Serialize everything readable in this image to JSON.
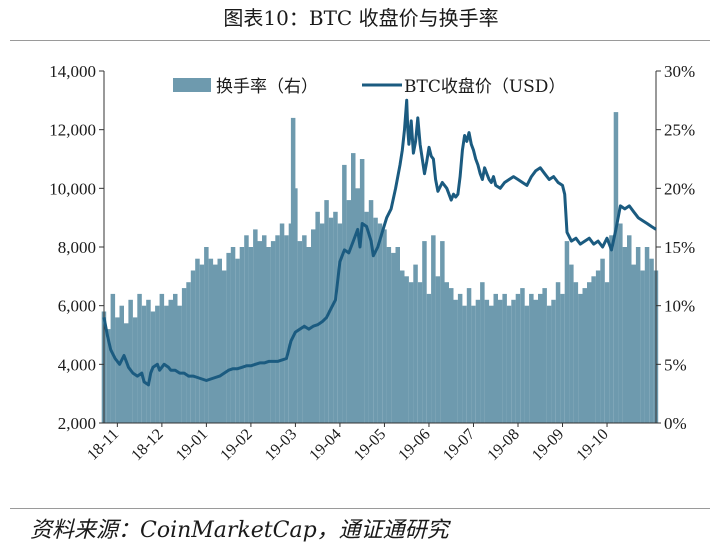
{
  "title": "图表10：BTC 收盘价与换手率",
  "source": "资料来源：CoinMarketCap，通证通研究",
  "chart_data": {
    "type": "bar+line",
    "title": "图表10：BTC 收盘价与换手率",
    "categories": [
      "18-11",
      "18-12",
      "19-01",
      "19-02",
      "19-03",
      "19-04",
      "19-05",
      "19-06",
      "19-07",
      "19-08",
      "19-09",
      "19-10"
    ],
    "y_left": {
      "min": 2000,
      "max": 14000,
      "ticks": [
        "2,000",
        "4,000",
        "6,000",
        "8,000",
        "10,000",
        "12,000",
        "14,000"
      ]
    },
    "y_right": {
      "min": 0,
      "max": 30,
      "ticks": [
        "0%",
        "5%",
        "10%",
        "15%",
        "20%",
        "25%",
        "30%"
      ]
    },
    "legend_placement": "top-center",
    "colors": {
      "bar": "#6e9aae",
      "line": "#1b5b80"
    },
    "series": [
      {
        "name": "换手率（右）",
        "type": "bar",
        "axis": "right",
        "unit": "%",
        "points": [
          [
            0.0,
            9.5
          ],
          [
            0.2,
            8.0
          ],
          [
            0.4,
            11.0
          ],
          [
            0.6,
            9.0
          ],
          [
            0.8,
            10.0
          ],
          [
            1.0,
            8.5
          ],
          [
            1.2,
            10.5
          ],
          [
            1.4,
            9.0
          ],
          [
            1.6,
            11.0
          ],
          [
            1.8,
            10.0
          ],
          [
            2.0,
            10.5
          ],
          [
            2.2,
            9.5
          ],
          [
            2.4,
            10.0
          ],
          [
            2.6,
            11.0
          ],
          [
            2.8,
            10.0
          ],
          [
            3.0,
            10.5
          ],
          [
            3.2,
            11.0
          ],
          [
            3.4,
            10.0
          ],
          [
            3.6,
            11.5
          ],
          [
            3.8,
            12.0
          ],
          [
            4.0,
            13.0
          ],
          [
            4.2,
            14.0
          ],
          [
            4.4,
            13.5
          ],
          [
            4.6,
            15.0
          ],
          [
            4.8,
            14.0
          ],
          [
            5.0,
            13.5
          ],
          [
            5.2,
            14.0
          ],
          [
            5.4,
            13.0
          ],
          [
            5.6,
            14.5
          ],
          [
            5.8,
            15.0
          ],
          [
            6.0,
            14.0
          ],
          [
            6.2,
            15.0
          ],
          [
            6.4,
            16.0
          ],
          [
            6.6,
            15.0
          ],
          [
            6.8,
            16.5
          ],
          [
            7.0,
            15.5
          ],
          [
            7.2,
            16.0
          ],
          [
            7.4,
            15.0
          ],
          [
            7.6,
            15.5
          ],
          [
            7.8,
            16.0
          ],
          [
            8.0,
            17.0
          ],
          [
            8.2,
            16.0
          ],
          [
            8.4,
            17.0
          ],
          [
            8.5,
            26.0
          ],
          [
            8.6,
            20.0
          ],
          [
            8.8,
            15.5
          ],
          [
            9.0,
            16.0
          ],
          [
            9.2,
            15.0
          ],
          [
            9.4,
            16.5
          ],
          [
            9.6,
            18.0
          ],
          [
            9.8,
            17.0
          ],
          [
            10.0,
            19.0
          ],
          [
            10.2,
            17.5
          ],
          [
            10.4,
            18.0
          ],
          [
            10.6,
            17.0
          ],
          [
            10.8,
            22.0
          ],
          [
            11.0,
            19.0
          ],
          [
            11.2,
            23.0
          ],
          [
            11.4,
            20.0
          ],
          [
            11.6,
            22.5
          ],
          [
            11.8,
            18.0
          ],
          [
            12.0,
            19.0
          ],
          [
            12.2,
            17.5
          ],
          [
            12.4,
            17.0
          ],
          [
            12.6,
            16.5
          ],
          [
            12.8,
            15.0
          ],
          [
            13.0,
            14.5
          ],
          [
            13.2,
            15.0
          ],
          [
            13.4,
            13.0
          ],
          [
            13.6,
            12.5
          ],
          [
            13.8,
            12.0
          ],
          [
            14.0,
            13.5
          ],
          [
            14.2,
            12.0
          ],
          [
            14.4,
            15.5
          ],
          [
            14.6,
            11.0
          ],
          [
            14.8,
            16.0
          ],
          [
            15.0,
            12.5
          ],
          [
            15.2,
            15.5
          ],
          [
            15.4,
            12.0
          ],
          [
            15.6,
            11.5
          ],
          [
            15.8,
            10.5
          ],
          [
            16.0,
            11.0
          ],
          [
            16.2,
            10.0
          ],
          [
            16.4,
            11.5
          ],
          [
            16.6,
            10.0
          ],
          [
            16.8,
            10.5
          ],
          [
            17.0,
            12.0
          ],
          [
            17.2,
            10.5
          ],
          [
            17.4,
            10.0
          ],
          [
            17.6,
            11.0
          ],
          [
            17.8,
            10.5
          ],
          [
            18.0,
            11.0
          ],
          [
            18.2,
            10.0
          ],
          [
            18.4,
            10.5
          ],
          [
            18.6,
            11.0
          ],
          [
            18.8,
            11.5
          ],
          [
            19.0,
            10.0
          ],
          [
            19.2,
            11.0
          ],
          [
            19.4,
            10.5
          ],
          [
            19.6,
            11.0
          ],
          [
            19.8,
            11.5
          ],
          [
            20.0,
            10.0
          ],
          [
            20.2,
            10.5
          ],
          [
            20.4,
            12.0
          ],
          [
            20.6,
            11.0
          ],
          [
            20.8,
            15.5
          ],
          [
            21.0,
            13.5
          ],
          [
            21.2,
            12.0
          ],
          [
            21.4,
            11.0
          ],
          [
            21.6,
            11.5
          ],
          [
            21.8,
            12.0
          ],
          [
            22.0,
            12.5
          ],
          [
            22.2,
            13.0
          ],
          [
            22.4,
            14.0
          ],
          [
            22.6,
            12.0
          ],
          [
            22.8,
            16.0
          ],
          [
            23.0,
            26.5
          ],
          [
            23.2,
            17.0
          ],
          [
            23.4,
            15.0
          ],
          [
            23.6,
            16.0
          ],
          [
            23.8,
            13.5
          ],
          [
            24.0,
            15.0
          ],
          [
            24.2,
            13.0
          ],
          [
            24.4,
            15.0
          ],
          [
            24.6,
            14.0
          ],
          [
            24.8,
            13.0
          ]
        ]
      },
      {
        "name": "BTC收盘价（USD）",
        "type": "line",
        "axis": "left",
        "unit": "USD",
        "points": [
          [
            0.0,
            5600
          ],
          [
            0.15,
            5000
          ],
          [
            0.3,
            4500
          ],
          [
            0.5,
            4200
          ],
          [
            0.7,
            4000
          ],
          [
            0.9,
            4300
          ],
          [
            1.0,
            4100
          ],
          [
            1.1,
            3900
          ],
          [
            1.3,
            3700
          ],
          [
            1.5,
            3600
          ],
          [
            1.7,
            3700
          ],
          [
            1.8,
            3400
          ],
          [
            2.0,
            3300
          ],
          [
            2.1,
            3700
          ],
          [
            2.2,
            3900
          ],
          [
            2.4,
            4000
          ],
          [
            2.5,
            3800
          ],
          [
            2.7,
            4000
          ],
          [
            2.9,
            3900
          ],
          [
            3.0,
            3800
          ],
          [
            3.2,
            3800
          ],
          [
            3.4,
            3700
          ],
          [
            3.6,
            3700
          ],
          [
            3.8,
            3600
          ],
          [
            4.0,
            3600
          ],
          [
            4.2,
            3550
          ],
          [
            4.4,
            3500
          ],
          [
            4.6,
            3450
          ],
          [
            4.8,
            3500
          ],
          [
            5.0,
            3550
          ],
          [
            5.2,
            3600
          ],
          [
            5.4,
            3700
          ],
          [
            5.6,
            3800
          ],
          [
            5.8,
            3850
          ],
          [
            6.0,
            3850
          ],
          [
            6.2,
            3900
          ],
          [
            6.4,
            3950
          ],
          [
            6.6,
            3950
          ],
          [
            6.8,
            4000
          ],
          [
            7.0,
            4050
          ],
          [
            7.2,
            4050
          ],
          [
            7.4,
            4100
          ],
          [
            7.6,
            4100
          ],
          [
            7.8,
            4100
          ],
          [
            8.0,
            4150
          ],
          [
            8.2,
            4200
          ],
          [
            8.4,
            4800
          ],
          [
            8.6,
            5100
          ],
          [
            8.8,
            5200
          ],
          [
            9.0,
            5300
          ],
          [
            9.2,
            5200
          ],
          [
            9.4,
            5300
          ],
          [
            9.6,
            5350
          ],
          [
            9.8,
            5450
          ],
          [
            10.0,
            5600
          ],
          [
            10.2,
            5900
          ],
          [
            10.4,
            6200
          ],
          [
            10.6,
            7500
          ],
          [
            10.8,
            7900
          ],
          [
            11.0,
            7800
          ],
          [
            11.2,
            8200
          ],
          [
            11.4,
            8600
          ],
          [
            11.5,
            8000
          ],
          [
            11.6,
            8800
          ],
          [
            11.8,
            8700
          ],
          [
            12.0,
            8200
          ],
          [
            12.1,
            7700
          ],
          [
            12.3,
            8000
          ],
          [
            12.5,
            8500
          ],
          [
            12.7,
            9000
          ],
          [
            12.9,
            9300
          ],
          [
            13.1,
            10000
          ],
          [
            13.3,
            10800
          ],
          [
            13.4,
            11300
          ],
          [
            13.5,
            12000
          ],
          [
            13.6,
            13000
          ],
          [
            13.65,
            12000
          ],
          [
            13.7,
            11500
          ],
          [
            13.8,
            12300
          ],
          [
            13.9,
            11200
          ],
          [
            14.0,
            11600
          ],
          [
            14.1,
            12400
          ],
          [
            14.2,
            11500
          ],
          [
            14.3,
            11000
          ],
          [
            14.4,
            10500
          ],
          [
            14.5,
            10900
          ],
          [
            14.6,
            11400
          ],
          [
            14.7,
            11100
          ],
          [
            14.8,
            11000
          ],
          [
            14.9,
            10300
          ],
          [
            15.0,
            9900
          ],
          [
            15.2,
            10200
          ],
          [
            15.4,
            10000
          ],
          [
            15.6,
            9600
          ],
          [
            15.7,
            9800
          ],
          [
            15.8,
            9700
          ],
          [
            15.9,
            9800
          ],
          [
            16.0,
            10400
          ],
          [
            16.1,
            11300
          ],
          [
            16.2,
            11800
          ],
          [
            16.3,
            11600
          ],
          [
            16.4,
            11900
          ],
          [
            16.5,
            11500
          ],
          [
            16.6,
            11300
          ],
          [
            16.7,
            11000
          ],
          [
            16.8,
            10800
          ],
          [
            16.9,
            10500
          ],
          [
            17.0,
            10300
          ],
          [
            17.1,
            10700
          ],
          [
            17.2,
            10500
          ],
          [
            17.3,
            10300
          ],
          [
            17.4,
            10200
          ],
          [
            17.5,
            10400
          ],
          [
            17.6,
            10100
          ],
          [
            17.8,
            10000
          ],
          [
            18.0,
            10200
          ],
          [
            18.2,
            10300
          ],
          [
            18.4,
            10400
          ],
          [
            18.6,
            10300
          ],
          [
            18.8,
            10200
          ],
          [
            19.0,
            10100
          ],
          [
            19.2,
            10400
          ],
          [
            19.4,
            10600
          ],
          [
            19.6,
            10700
          ],
          [
            19.8,
            10500
          ],
          [
            20.0,
            10300
          ],
          [
            20.2,
            10400
          ],
          [
            20.4,
            10200
          ],
          [
            20.6,
            10100
          ],
          [
            20.7,
            9800
          ],
          [
            20.8,
            8500
          ],
          [
            21.0,
            8200
          ],
          [
            21.2,
            8300
          ],
          [
            21.4,
            8100
          ],
          [
            21.6,
            8200
          ],
          [
            21.8,
            8300
          ],
          [
            22.0,
            8100
          ],
          [
            22.2,
            8200
          ],
          [
            22.4,
            8000
          ],
          [
            22.6,
            8300
          ],
          [
            22.8,
            7900
          ],
          [
            23.0,
            8600
          ],
          [
            23.2,
            9400
          ],
          [
            23.4,
            9300
          ],
          [
            23.6,
            9400
          ],
          [
            23.8,
            9200
          ],
          [
            24.0,
            9000
          ],
          [
            24.2,
            8900
          ],
          [
            24.4,
            8800
          ],
          [
            24.6,
            8700
          ],
          [
            24.8,
            8600
          ]
        ]
      }
    ]
  }
}
